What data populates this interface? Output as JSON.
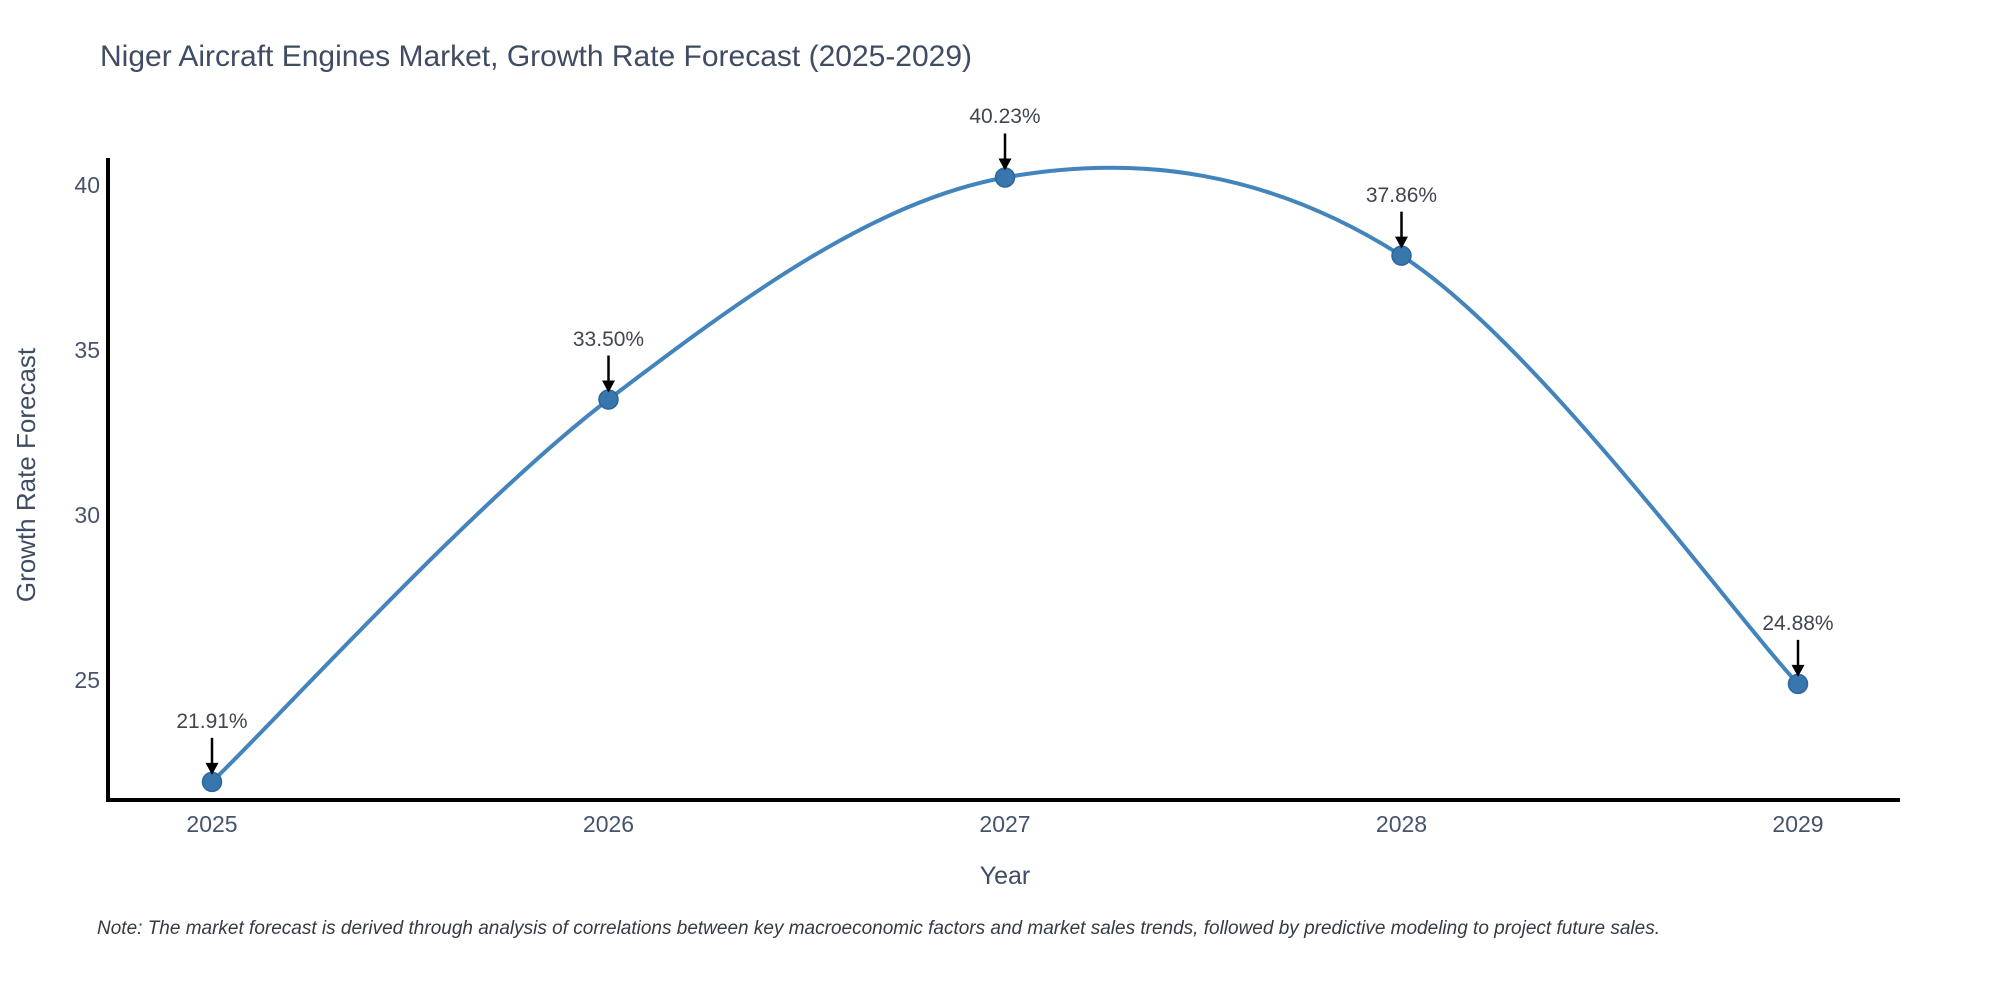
{
  "title": "Niger Aircraft Engines Market, Growth Rate Forecast (2025-2029)",
  "note": "Note: The market forecast is derived through analysis of correlations between key macroeconomic factors and market sales trends, followed by predictive modeling to project future sales.",
  "colors": {
    "line": "#4384bd",
    "marker_fill": "#3876ae",
    "marker_edge": "#2e659a",
    "axis": "#000000",
    "heading_text": "#3f4c63",
    "tick_text": "#47536b",
    "annotation_text": "#3f4650",
    "annotation_arrow": "#000000",
    "note_text": "#333b45"
  },
  "chart_data": {
    "type": "line",
    "line_shape": "spline",
    "title": "Niger Aircraft Engines Market, Growth Rate Forecast (2025-2029)",
    "xlabel": "Year",
    "ylabel": "Growth Rate Forecast",
    "x": [
      "2025",
      "2026",
      "2027",
      "2028",
      "2029"
    ],
    "values": [
      21.91,
      33.5,
      40.23,
      37.86,
      24.88
    ],
    "point_labels": [
      "21.91%",
      "33.50%",
      "40.23%",
      "37.86%",
      "24.88%"
    ],
    "yticks": [
      25,
      30,
      35,
      40
    ],
    "ylim": [
      21.36,
      40.76
    ],
    "grid": false,
    "legend": false,
    "annotations": "value label with downward arrow above each data point"
  }
}
